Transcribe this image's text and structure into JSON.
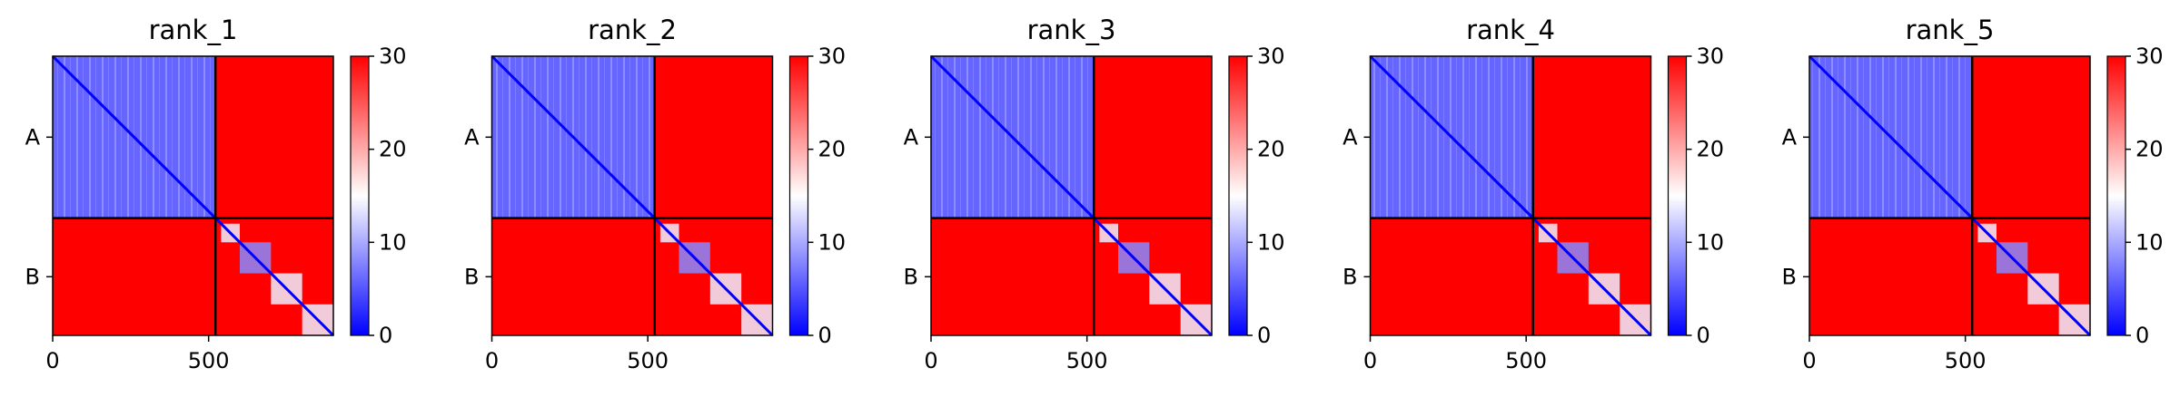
{
  "chart_data": {
    "type": "heatmap",
    "description_free": true,
    "chains": [
      "A",
      "B"
    ],
    "chain_boundary": 522,
    "sequence_length": 900,
    "x_ticks": [
      0,
      500
    ],
    "y_ticks": [
      "A",
      "B"
    ],
    "colorbar": {
      "min": 0,
      "max": 30,
      "ticks": [
        0,
        10,
        20,
        30
      ],
      "colors": [
        "#0000ff",
        "#ffffff",
        "#ff0000"
      ]
    },
    "panels": [
      {
        "title": "rank_1",
        "intra_A": 6,
        "intra_B": 29,
        "inter": 30
      },
      {
        "title": "rank_2",
        "intra_A": 6,
        "intra_B": 29,
        "inter": 30
      },
      {
        "title": "rank_3",
        "intra_A": 6,
        "intra_B": 29,
        "inter": 30
      },
      {
        "title": "rank_4",
        "intra_A": 6,
        "intra_B": 29,
        "inter": 30
      },
      {
        "title": "rank_5",
        "intra_A": 6,
        "intra_B": 29,
        "inter": 30
      }
    ]
  }
}
